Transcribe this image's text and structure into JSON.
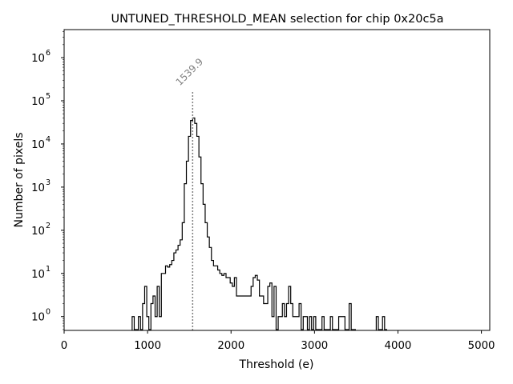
{
  "chart_data": {
    "type": "histogram",
    "title": "UNTUNED_THRESHOLD_MEAN selection for chip 0x20c5a",
    "xlabel": "Threshold (e)",
    "ylabel": "Number of pixels",
    "xlim": [
      0,
      5100
    ],
    "ylim_log10": [
      -0.32,
      6.65
    ],
    "yscale": "log",
    "x_ticks": [
      0,
      1000,
      2000,
      3000,
      4000,
      5000
    ],
    "x_tick_labels": [
      "0",
      "1000",
      "2000",
      "3000",
      "4000",
      "5000"
    ],
    "y_ticks_exponent": [
      0,
      1,
      2,
      3,
      4,
      5,
      6
    ],
    "y_tick_base": "10",
    "y_tick_exponents_text": [
      "0",
      "1",
      "2",
      "3",
      "4",
      "5",
      "6"
    ],
    "grid": false,
    "line_color": "#000000",
    "annotation": {
      "text": "1539.9",
      "x": 1539.9,
      "y_top": 170000,
      "color": "#808080"
    },
    "bins": [
      [
        815,
        840,
        1
      ],
      [
        840,
        865,
        0.5
      ],
      [
        865,
        890,
        0.5
      ],
      [
        890,
        915,
        1
      ],
      [
        915,
        940,
        0.5
      ],
      [
        940,
        965,
        2
      ],
      [
        965,
        990,
        5
      ],
      [
        990,
        1015,
        1
      ],
      [
        1015,
        1040,
        0.5
      ],
      [
        1040,
        1065,
        2
      ],
      [
        1065,
        1090,
        3
      ],
      [
        1090,
        1115,
        1
      ],
      [
        1115,
        1140,
        5
      ],
      [
        1140,
        1165,
        1
      ],
      [
        1165,
        1190,
        10
      ],
      [
        1190,
        1215,
        10
      ],
      [
        1215,
        1240,
        15
      ],
      [
        1240,
        1265,
        14
      ],
      [
        1265,
        1290,
        16
      ],
      [
        1290,
        1315,
        20
      ],
      [
        1315,
        1340,
        30
      ],
      [
        1340,
        1365,
        35
      ],
      [
        1365,
        1390,
        45
      ],
      [
        1390,
        1415,
        60
      ],
      [
        1415,
        1440,
        150
      ],
      [
        1440,
        1465,
        1200
      ],
      [
        1465,
        1490,
        4000
      ],
      [
        1490,
        1515,
        15000
      ],
      [
        1515,
        1540,
        35000
      ],
      [
        1540,
        1565,
        40000
      ],
      [
        1565,
        1590,
        30000
      ],
      [
        1590,
        1615,
        15000
      ],
      [
        1615,
        1640,
        5000
      ],
      [
        1640,
        1665,
        1200
      ],
      [
        1665,
        1690,
        400
      ],
      [
        1690,
        1715,
        150
      ],
      [
        1715,
        1740,
        70
      ],
      [
        1740,
        1765,
        40
      ],
      [
        1765,
        1790,
        20
      ],
      [
        1790,
        1815,
        15
      ],
      [
        1815,
        1840,
        15
      ],
      [
        1840,
        1865,
        12
      ],
      [
        1865,
        1890,
        10
      ],
      [
        1890,
        1915,
        9
      ],
      [
        1915,
        1940,
        10
      ],
      [
        1940,
        1965,
        8
      ],
      [
        1965,
        1990,
        8
      ],
      [
        1990,
        2015,
        6
      ],
      [
        2015,
        2040,
        5
      ],
      [
        2040,
        2065,
        8
      ],
      [
        2065,
        2090,
        3
      ],
      [
        2090,
        2115,
        3
      ],
      [
        2115,
        2140,
        3
      ],
      [
        2140,
        2165,
        3
      ],
      [
        2165,
        2190,
        3
      ],
      [
        2190,
        2215,
        3
      ],
      [
        2215,
        2240,
        3
      ],
      [
        2240,
        2265,
        5
      ],
      [
        2265,
        2290,
        8
      ],
      [
        2290,
        2315,
        9
      ],
      [
        2315,
        2340,
        7
      ],
      [
        2340,
        2365,
        3
      ],
      [
        2365,
        2390,
        3
      ],
      [
        2390,
        2415,
        2
      ],
      [
        2415,
        2440,
        2
      ],
      [
        2440,
        2465,
        5
      ],
      [
        2465,
        2490,
        6
      ],
      [
        2490,
        2515,
        1
      ],
      [
        2515,
        2540,
        5
      ],
      [
        2540,
        2565,
        0.5
      ],
      [
        2565,
        2590,
        1
      ],
      [
        2590,
        2615,
        1
      ],
      [
        2615,
        2640,
        2
      ],
      [
        2640,
        2665,
        1
      ],
      [
        2665,
        2690,
        2
      ],
      [
        2690,
        2715,
        5
      ],
      [
        2715,
        2740,
        2
      ],
      [
        2740,
        2765,
        1
      ],
      [
        2765,
        2790,
        1
      ],
      [
        2790,
        2815,
        1
      ],
      [
        2815,
        2840,
        2
      ],
      [
        2840,
        2865,
        0.5
      ],
      [
        2865,
        2890,
        1
      ],
      [
        2890,
        2915,
        1
      ],
      [
        2915,
        2940,
        0.5
      ],
      [
        2940,
        2965,
        1
      ],
      [
        2965,
        2990,
        0.5
      ],
      [
        2990,
        3015,
        1
      ],
      [
        3015,
        3040,
        0.5
      ],
      [
        3040,
        3065,
        0.5
      ],
      [
        3065,
        3090,
        0.5
      ],
      [
        3090,
        3115,
        1
      ],
      [
        3115,
        3140,
        0.5
      ],
      [
        3140,
        3165,
        0.5
      ],
      [
        3165,
        3190,
        0.5
      ],
      [
        3190,
        3215,
        1
      ],
      [
        3215,
        3240,
        0.5
      ],
      [
        3240,
        3265,
        0.5
      ],
      [
        3265,
        3290,
        0.5
      ],
      [
        3290,
        3315,
        1
      ],
      [
        3315,
        3340,
        1
      ],
      [
        3340,
        3365,
        1
      ],
      [
        3365,
        3390,
        0.5
      ],
      [
        3390,
        3415,
        0.5
      ],
      [
        3415,
        3440,
        2
      ],
      [
        3440,
        3465,
        0.5
      ],
      [
        3465,
        3490,
        0.5
      ],
      [
        3740,
        3765,
        1
      ],
      [
        3765,
        3790,
        0.5
      ],
      [
        3790,
        3815,
        0.5
      ],
      [
        3815,
        3840,
        1
      ],
      [
        3840,
        3865,
        0.5
      ]
    ]
  }
}
